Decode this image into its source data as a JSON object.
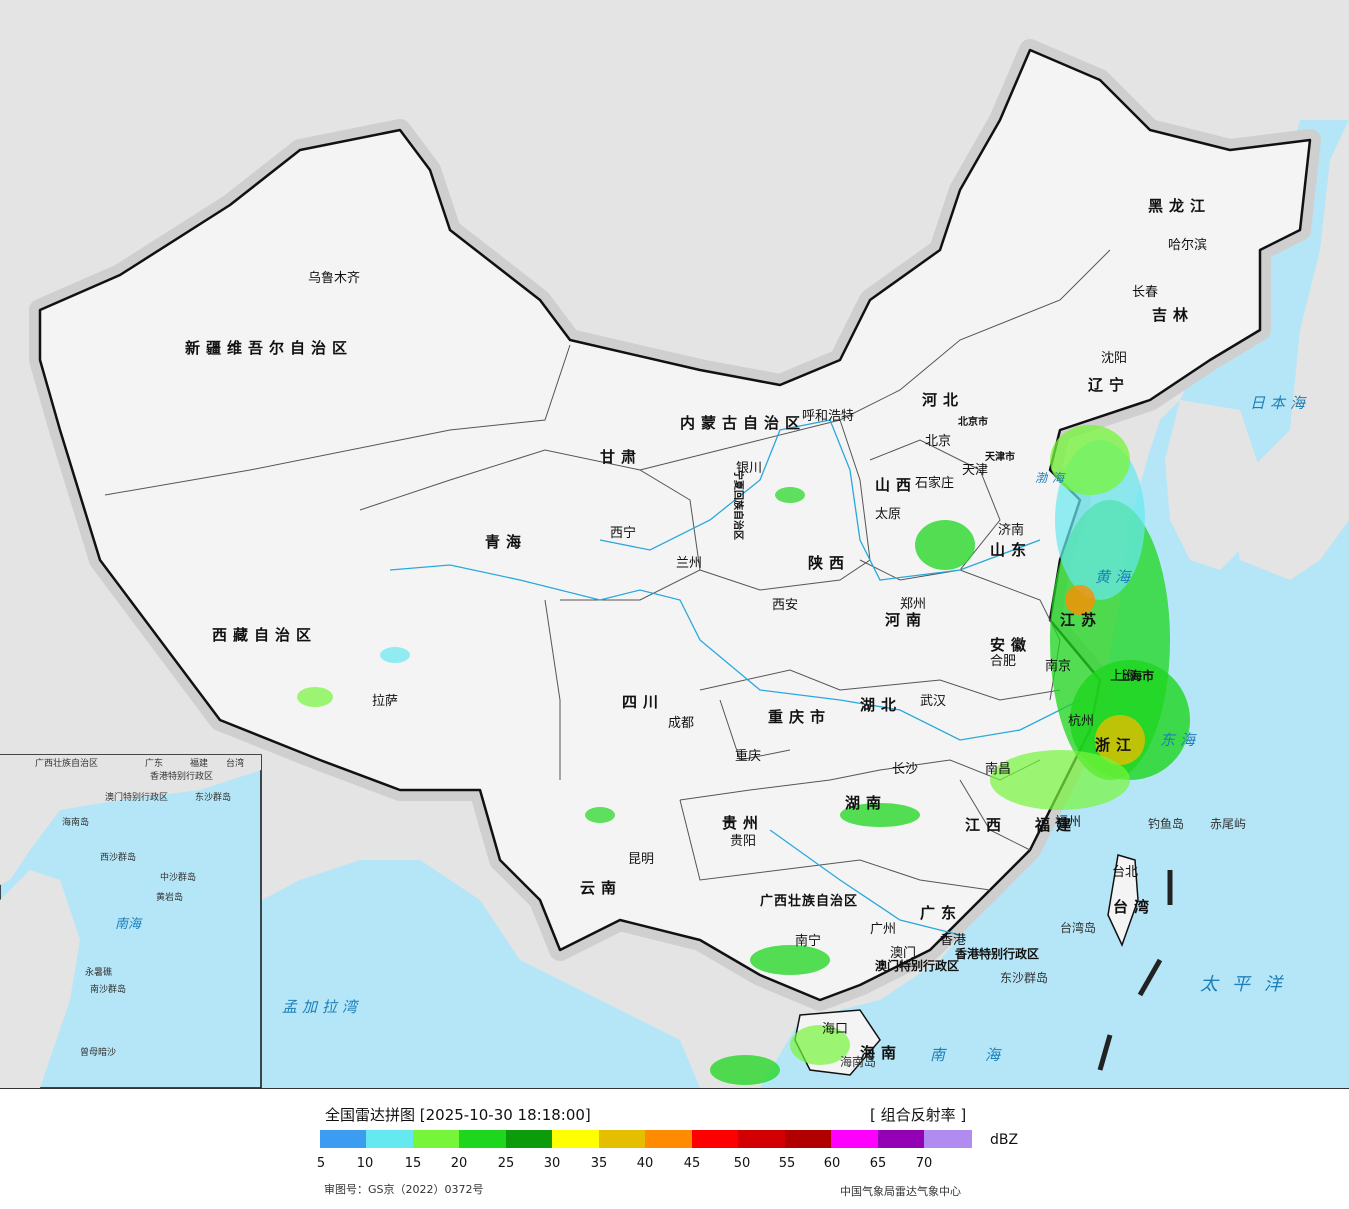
{
  "map": {
    "colors": {
      "sea": "#b5e6f7",
      "land_out": "#e4e4e4",
      "china": "#f4f4f4",
      "border": "#111111",
      "river": "#2aa8dc"
    },
    "provinces": [
      "新疆维吾尔自治区",
      "西藏自治区",
      "青海",
      "甘肃",
      "内蒙古自治区",
      "黑龙江",
      "吉林",
      "辽宁",
      "河北",
      "山西",
      "山东",
      "陕西",
      "河南",
      "四川",
      "湖北",
      "安徽",
      "江苏",
      "浙江",
      "重庆市",
      "湖南",
      "江西",
      "福建",
      "贵州",
      "云南",
      "广西壮族自治区",
      "广东",
      "海南",
      "台湾",
      "宁夏回族自治区",
      "北京市",
      "天津市",
      "上海市",
      "香港特别行政区",
      "澳门特别行政区"
    ],
    "cities": [
      "乌鲁木齐",
      "拉萨",
      "西宁",
      "兰州",
      "银川",
      "呼和浩特",
      "北京",
      "天津",
      "石家庄",
      "太原",
      "济南",
      "郑州",
      "西安",
      "成都",
      "重庆",
      "武汉",
      "合肥",
      "南京",
      "上海",
      "杭州",
      "长沙",
      "南昌",
      "福州",
      "台北",
      "贵阳",
      "昆明",
      "南宁",
      "广州",
      "香港",
      "澳门",
      "海口",
      "哈尔滨",
      "长春",
      "沈阳"
    ],
    "seas": [
      "日本海",
      "渤海",
      "黄海",
      "东海",
      "太平洋",
      "南海",
      "孟加拉湾"
    ],
    "islands": [
      "钓鱼岛",
      "赤尾屿",
      "台湾岛",
      "东沙群岛",
      "海南岛"
    ],
    "inset": {
      "labels": [
        "广西壮族自治区",
        "广东",
        "福建",
        "台湾",
        "香港特别行政区",
        "澳门特别行政区",
        "东沙群岛",
        "海南岛",
        "西沙群岛",
        "中沙群岛",
        "黄岩岛",
        "南海",
        "永暑礁",
        "南沙群岛",
        "曾母暗沙"
      ]
    }
  },
  "footer": {
    "title": "全国雷达拼图 [2025-10-30 18:18:00]",
    "product": "[ 组合反射率 ]",
    "unit": "dBZ",
    "legend_colors": [
      "#3b9cf0",
      "#66e8f0",
      "#76f53a",
      "#1ed61e",
      "#0b9b0b",
      "#ffff00",
      "#e6be00",
      "#ff8c00",
      "#ff0000",
      "#d20000",
      "#b00000",
      "#ff00ff",
      "#9400b4",
      "#b08cf0"
    ],
    "legend_ticks": [
      "5",
      "10",
      "15",
      "20",
      "25",
      "30",
      "35",
      "40",
      "45",
      "50",
      "55",
      "60",
      "65",
      "70"
    ],
    "approval": "审图号：GS京（2022）0372号",
    "source": "中国气象局雷达气象中心"
  }
}
